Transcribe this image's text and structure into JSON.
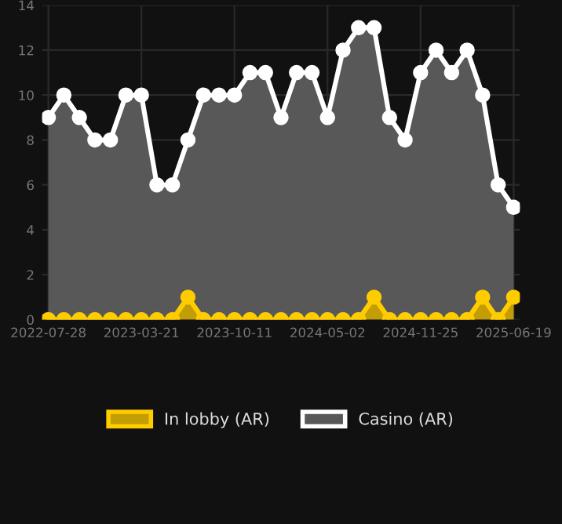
{
  "chart_data": {
    "type": "area",
    "categories": [
      "2022-07-28",
      null,
      null,
      null,
      null,
      null,
      "2023-03-21",
      null,
      null,
      null,
      null,
      null,
      "2023-10-11",
      null,
      null,
      null,
      null,
      null,
      "2024-05-02",
      null,
      null,
      null,
      null,
      null,
      "2024-11-25",
      null,
      null,
      null,
      null,
      null,
      "2025-06-19"
    ],
    "series": [
      {
        "name": "In lobby (AR)",
        "color": "#ffcc00",
        "values": [
          0,
          0,
          0,
          0,
          0,
          0,
          0,
          0,
          0,
          1,
          0,
          0,
          0,
          0,
          0,
          0,
          0,
          0,
          0,
          0,
          0,
          1,
          0,
          0,
          0,
          0,
          0,
          0,
          1,
          0,
          1
        ]
      },
      {
        "name": "Casino (AR)",
        "color": "#ffffff",
        "values": [
          9,
          10,
          9,
          8,
          8,
          10,
          10,
          6,
          6,
          8,
          10,
          10,
          10,
          11,
          11,
          9,
          11,
          11,
          9,
          12,
          13,
          13,
          9,
          8,
          11,
          12,
          11,
          12,
          10,
          6,
          5
        ]
      }
    ],
    "ylim": [
      0,
      14
    ],
    "yticks": [
      0,
      2,
      4,
      6,
      8,
      10,
      12,
      14
    ],
    "grid": true,
    "legend": "bottom",
    "marker": "circle",
    "line_style": "solid"
  }
}
